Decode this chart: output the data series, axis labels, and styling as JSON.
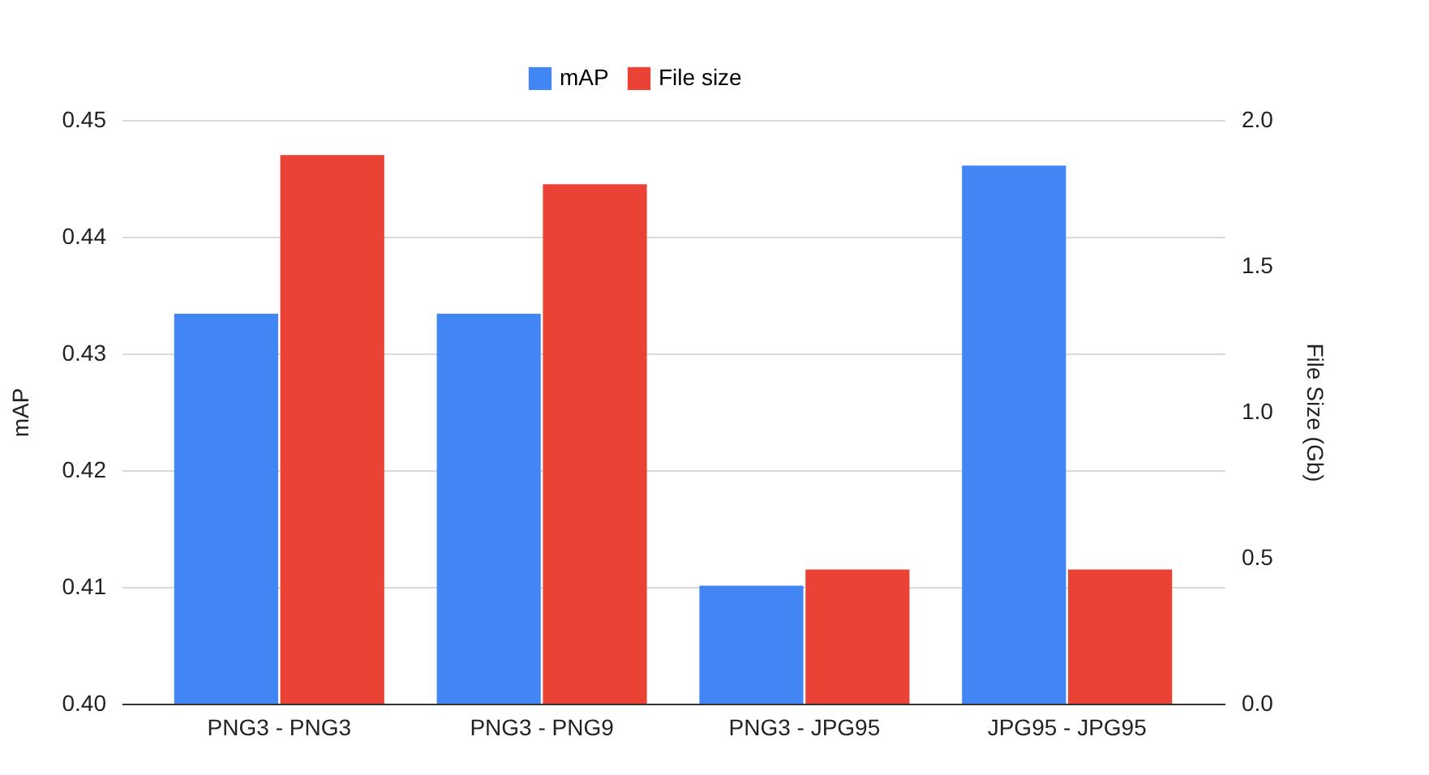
{
  "chart_data": {
    "type": "bar",
    "categories": [
      "PNG3 - PNG3",
      "PNG3 - PNG9",
      "PNG3 - JPG95",
      "JPG95 - JPG95"
    ],
    "series": [
      {
        "name": "mAP",
        "color": "#4285f4",
        "values": [
          0.4334,
          0.4334,
          0.4101,
          0.4461
        ]
      },
      {
        "name": "File size",
        "color": "#ea4335",
        "values": [
          1.88,
          1.78,
          0.46,
          0.46
        ],
        "axis": "y2"
      }
    ],
    "ylabel": "mAP",
    "y2label": "File Size (Gb)",
    "ylim": [
      0.4,
      0.45
    ],
    "yticks": [
      {
        "value": 0.4,
        "label": "0.40"
      },
      0.41,
      0.42,
      0.43,
      0.44,
      0.45
    ],
    "y2lim": [
      0,
      2
    ],
    "y2ticks": [
      {
        "value": 0,
        "label": "0.0"
      },
      0.5,
      {
        "value": 1,
        "label": "1.0"
      },
      1.5,
      {
        "value": 2,
        "label": "2.0"
      }
    ],
    "grid": "y",
    "legend": "top"
  }
}
